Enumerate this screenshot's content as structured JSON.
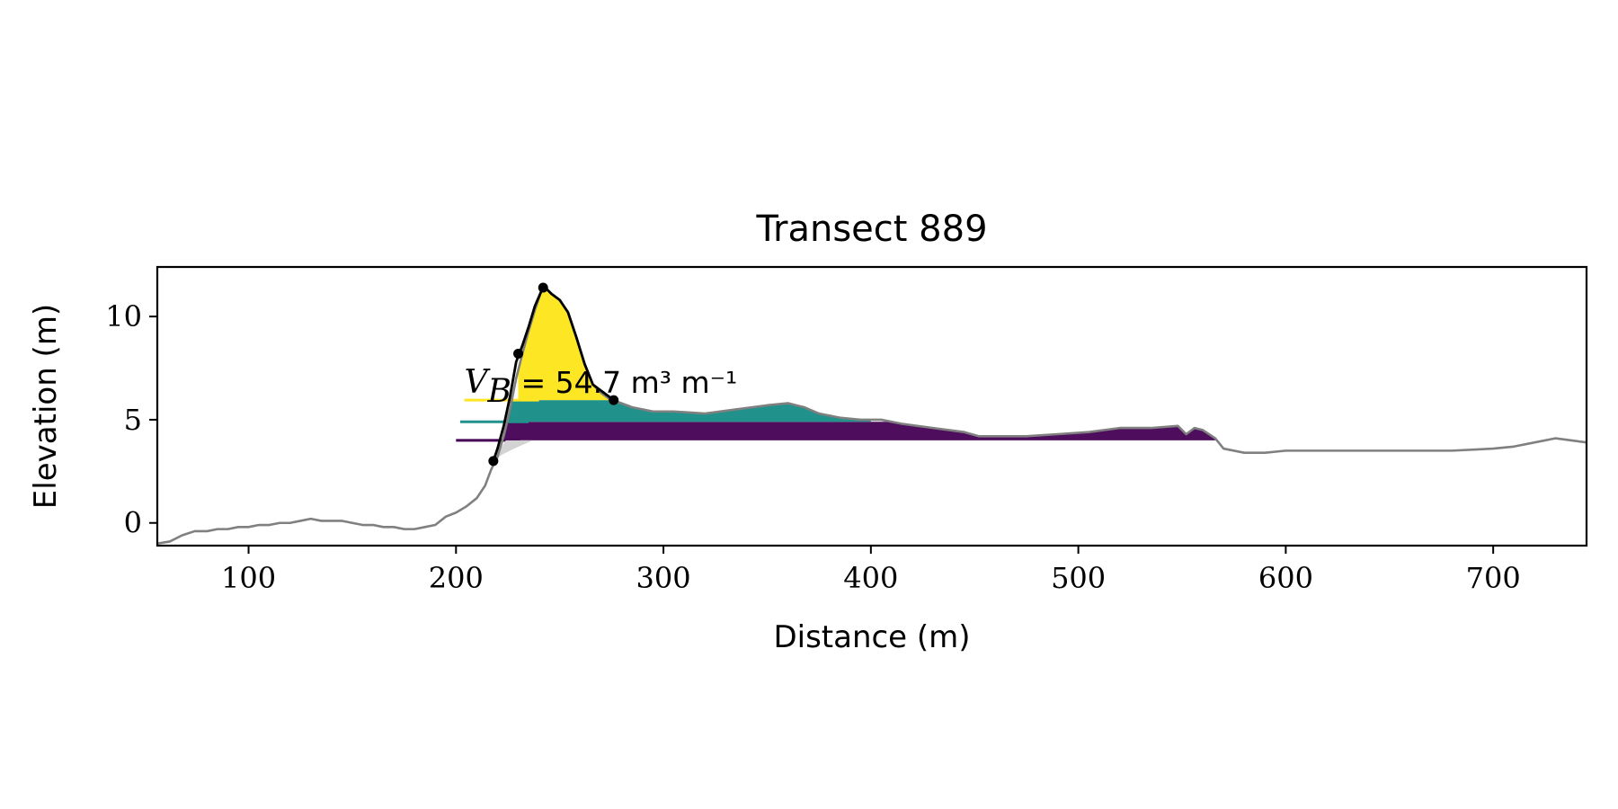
{
  "chart_data": {
    "type": "line",
    "title": "Transect 889",
    "xlabel": "Distance (m)",
    "ylabel": "Elevation (m)",
    "xlim": [
      56,
      745
    ],
    "ylim": [
      -1.1,
      12.4
    ],
    "xticks": [
      100,
      200,
      300,
      400,
      500,
      600,
      700
    ],
    "yticks": [
      0,
      5,
      10
    ],
    "grid": false,
    "annotation": {
      "symbol": "V",
      "subscript": "B",
      "text": " = 54.7 m³ m⁻¹",
      "x": 204,
      "y": 6.3
    },
    "profile": {
      "color": "#808080",
      "x": [
        56,
        62,
        68,
        74,
        80,
        85,
        90,
        95,
        100,
        105,
        110,
        115,
        120,
        125,
        130,
        135,
        140,
        145,
        150,
        155,
        160,
        165,
        170,
        175,
        180,
        185,
        190,
        195,
        200,
        205,
        210,
        214,
        217,
        220,
        223,
        226,
        229,
        232,
        235,
        238,
        241,
        243,
        246,
        250,
        254,
        258,
        262,
        266,
        270,
        274,
        277,
        285,
        295,
        305,
        320,
        335,
        350,
        360,
        368,
        375,
        385,
        395,
        405,
        415,
        430,
        445,
        452,
        460,
        475,
        490,
        505,
        520,
        525,
        535,
        548,
        552,
        556,
        560,
        566,
        570,
        580,
        590,
        600,
        620,
        640,
        660,
        680,
        700,
        710,
        720,
        730,
        745
      ],
      "y": [
        -1.0,
        -0.9,
        -0.6,
        -0.4,
        -0.4,
        -0.3,
        -0.3,
        -0.2,
        -0.2,
        -0.1,
        -0.1,
        0.0,
        0.0,
        0.1,
        0.2,
        0.1,
        0.1,
        0.1,
        0.0,
        -0.1,
        -0.1,
        -0.2,
        -0.2,
        -0.3,
        -0.3,
        -0.2,
        -0.1,
        0.3,
        0.5,
        0.8,
        1.2,
        1.8,
        2.6,
        3.2,
        4.2,
        5.5,
        7.0,
        8.2,
        9.3,
        10.3,
        11.2,
        11.4,
        11.1,
        10.8,
        10.2,
        9.0,
        7.7,
        6.7,
        6.3,
        6.0,
        5.9,
        5.6,
        5.4,
        5.4,
        5.3,
        5.5,
        5.7,
        5.8,
        5.6,
        5.3,
        5.1,
        5.0,
        5.0,
        4.8,
        4.6,
        4.4,
        4.2,
        4.2,
        4.2,
        4.3,
        4.4,
        4.6,
        4.6,
        4.6,
        4.7,
        4.3,
        4.6,
        4.5,
        4.1,
        3.6,
        3.4,
        3.4,
        3.5,
        3.5,
        3.5,
        3.5,
        3.5,
        3.6,
        3.7,
        3.9,
        4.1,
        3.9
      ]
    },
    "dune_outline": {
      "color": "#000000",
      "x": [
        218,
        220,
        223,
        226,
        229,
        232,
        235,
        238,
        241,
        243,
        246,
        250,
        254,
        258,
        262,
        266,
        270,
        274,
        277
      ],
      "y": [
        3.0,
        3.6,
        4.7,
        6.1,
        7.8,
        8.6,
        9.5,
        10.5,
        11.2,
        11.4,
        11.1,
        10.8,
        10.2,
        9.0,
        7.7,
        6.7,
        6.4,
        6.1,
        5.95
      ]
    },
    "key_points": {
      "color": "#000000",
      "x": [
        218,
        230,
        242,
        276
      ],
      "y": [
        3.0,
        8.2,
        11.4,
        5.95
      ]
    },
    "toe_wedge": {
      "color": "#d3d3d3",
      "x": [
        218,
        222,
        228,
        237
      ],
      "y": [
        3.0,
        3.3,
        3.6,
        4.0
      ]
    },
    "volume_bands": [
      {
        "name": "",
        "color": "#440154",
        "lower": 4.0,
        "upper": 4.9,
        "line_start": 200,
        "fill_start": 221,
        "x_end": 568
      },
      {
        "name": "",
        "color": "#21918c",
        "lower": 4.9,
        "upper": 5.95,
        "line_start": 202,
        "fill_start": 225,
        "x_end": 400
      },
      {
        "name": "",
        "color": "#fde725",
        "lower": 5.95,
        "upper": 12,
        "line_start": 204,
        "fill_start": 230,
        "x_end": 280
      }
    ]
  }
}
